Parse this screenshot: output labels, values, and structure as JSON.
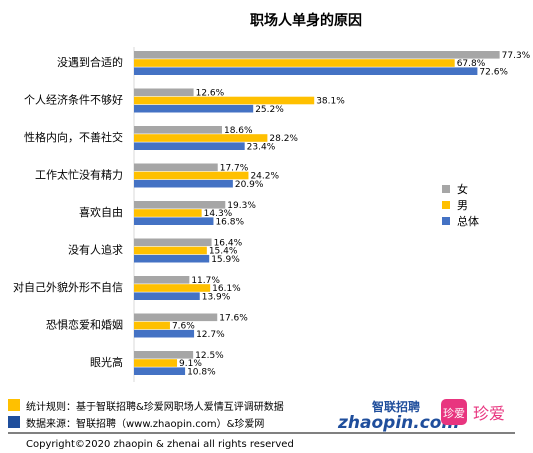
{
  "chart_data": {
    "type": "bar",
    "orientation": "horizontal",
    "title": "职场人单身的原因",
    "categories": [
      "没遇到合适的",
      "个人经济条件不够好",
      "性格内向，不善社交",
      "工作太忙没有精力",
      "喜欢自由",
      "没有人追求",
      "对自己外貌外形不自信",
      "恐惧恋爱和婚姻",
      "眼光高"
    ],
    "series": [
      {
        "name": "女",
        "color": "#a6a6a6",
        "values": [
          77.3,
          12.6,
          18.6,
          17.7,
          19.3,
          16.4,
          11.7,
          17.6,
          12.5
        ]
      },
      {
        "name": "男",
        "color": "#ffc000",
        "values": [
          67.8,
          38.1,
          28.2,
          24.2,
          14.3,
          15.4,
          16.1,
          7.6,
          9.1
        ]
      },
      {
        "name": "总体",
        "color": "#4472c4",
        "values": [
          72.6,
          25.2,
          23.4,
          20.9,
          16.8,
          15.9,
          13.9,
          12.7,
          10.8
        ]
      }
    ],
    "value_suffix": "%",
    "xlim": [
      0,
      80
    ],
    "grid": false,
    "legend_position": "right"
  },
  "footer": {
    "stat_note": "统计规则：基于智联招聘&珍爱网职场人爱情互评调研数据",
    "data_source": "数据来源：智联招聘（www.zhaopin.com）&珍爱网",
    "copyright": "Copyright©2020 zhaopin & zhenai  all rights reserved",
    "stat_note_color": "#ffc000",
    "data_source_color": "#1f4e9c"
  },
  "logos": {
    "zhaopin_cn": "智联招聘",
    "zhaopin_en": "zhaopin.com",
    "zhenai_badge": "珍爱",
    "zhenai_text": "珍爱"
  }
}
